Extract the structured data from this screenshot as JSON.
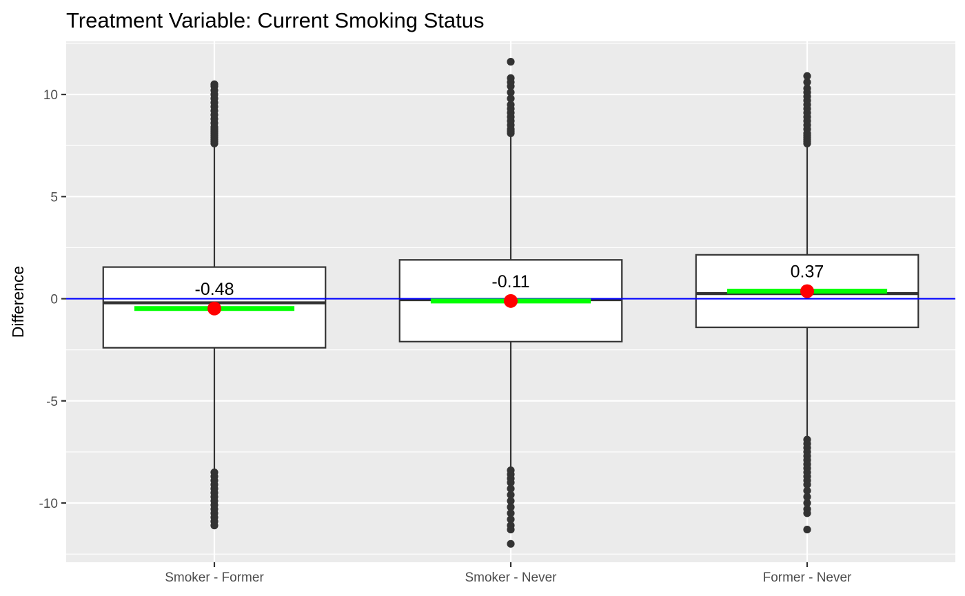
{
  "chart_data": {
    "type": "boxplot",
    "title": "Treatment Variable: Current Smoking Status",
    "xlabel": "",
    "ylabel": "Difference",
    "ylim": [
      -12.9,
      12.6
    ],
    "y_ticks": [
      10,
      5,
      0,
      -5,
      -10
    ],
    "y_tick_labels": [
      "10",
      "5",
      "0",
      "-5",
      "-10"
    ],
    "grid": true,
    "reference_line": {
      "y": 0,
      "color": "#0000ff"
    },
    "colors": {
      "panel": "#ebebeb",
      "grid": "#ffffff",
      "box_fill": "#ffffff",
      "box_stroke": "#333333",
      "outlier": "#333333",
      "median_bar": "#00ff00",
      "mean_point": "#ff0000",
      "reference_line": "#0000ff"
    },
    "categories": [
      "Smoker - Former",
      "Smoker - Never",
      "Former - Never"
    ],
    "boxes": [
      {
        "category": "Smoker - Former",
        "q1": -2.4,
        "median": -0.2,
        "q3": 1.55,
        "whisker_low": -8.4,
        "whisker_high": 7.5,
        "green_bar": -0.48,
        "mean": -0.48,
        "mean_label": "-0.48",
        "outliers": [
          7.6,
          7.7,
          7.8,
          7.9,
          8.0,
          8.1,
          8.2,
          8.3,
          8.4,
          8.6,
          8.8,
          9.0,
          9.2,
          9.4,
          9.6,
          9.8,
          10.0,
          10.2,
          10.4,
          10.5,
          -8.5,
          -8.7,
          -8.9,
          -9.1,
          -9.3,
          -9.5,
          -9.7,
          -9.9,
          -10.1,
          -10.3,
          -10.5,
          -10.7,
          -10.9,
          -11.1
        ]
      },
      {
        "category": "Smoker - Never",
        "q1": -2.1,
        "median": -0.05,
        "q3": 1.9,
        "whisker_low": -8.3,
        "whisker_high": 8.0,
        "green_bar": -0.11,
        "mean": -0.11,
        "mean_label": "-0.11",
        "outliers": [
          8.1,
          8.2,
          8.3,
          8.5,
          8.7,
          8.9,
          9.1,
          9.3,
          9.5,
          9.8,
          10.1,
          10.4,
          10.6,
          10.8,
          11.6,
          -8.4,
          -8.6,
          -8.8,
          -9.0,
          -9.3,
          -9.6,
          -9.9,
          -10.2,
          -10.5,
          -10.8,
          -11.1,
          -11.3,
          -12.0
        ]
      },
      {
        "category": "Former - Never",
        "q1": -1.4,
        "median": 0.25,
        "q3": 2.15,
        "whisker_low": -6.8,
        "whisker_high": 7.5,
        "green_bar": 0.37,
        "mean": 0.37,
        "mean_label": "0.37",
        "outliers": [
          7.6,
          7.7,
          7.8,
          7.9,
          8.0,
          8.1,
          8.3,
          8.5,
          8.7,
          8.9,
          9.1,
          9.3,
          9.5,
          9.7,
          9.9,
          10.1,
          10.3,
          10.6,
          10.9,
          -6.9,
          -7.1,
          -7.3,
          -7.5,
          -7.7,
          -7.9,
          -8.1,
          -8.3,
          -8.5,
          -8.7,
          -8.9,
          -9.1,
          -9.4,
          -9.7,
          -10.0,
          -10.3,
          -10.5,
          -11.3
        ]
      }
    ]
  }
}
